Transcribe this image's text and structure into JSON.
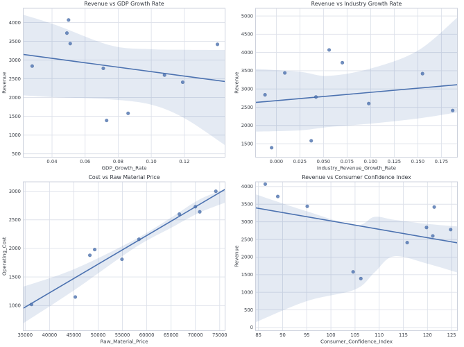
{
  "figure": {
    "background": "#ffffff",
    "accent": "#4c72b0",
    "band_color": "#4c72b0",
    "band_opacity": 0.15,
    "grid_color": "#dde1ea",
    "spine_color": "#ccd1dc",
    "text_color": "#3a3f47",
    "title_color": "#2f343c"
  },
  "chart_data": [
    {
      "type": "scatter",
      "key": "revenue-vs-gdp-growth-rate",
      "title": "Revenue vs GDP Growth Rate",
      "xlabel": "GDP_Growth_Rate",
      "ylabel": "Revenue",
      "xlim": [
        0.0226,
        0.1446
      ],
      "ylim": [
        410,
        4380
      ],
      "xticks": [
        0.04,
        0.06,
        0.08,
        0.1,
        0.12
      ],
      "x_decimals": 2,
      "yticks": [
        500,
        1000,
        1500,
        2000,
        2500,
        3000,
        3500,
        4000
      ],
      "grid": true,
      "regression": true,
      "points": [
        [
          0.028,
          2840
        ],
        [
          0.049,
          3720
        ],
        [
          0.05,
          4070
        ],
        [
          0.051,
          3440
        ],
        [
          0.071,
          2780
        ],
        [
          0.073,
          1390
        ],
        [
          0.086,
          1580
        ],
        [
          0.108,
          2600
        ],
        [
          0.119,
          2410
        ],
        [
          0.14,
          3420
        ]
      ],
      "ci_band": [
        [
          0.0226,
          2060,
          4210
        ],
        [
          0.042,
          2010,
          3940
        ],
        [
          0.0756,
          1950,
          3390
        ],
        [
          0.1,
          1810,
          3290
        ],
        [
          0.12,
          1450,
          3275
        ],
        [
          0.1446,
          730,
          3270
        ]
      ]
    },
    {
      "type": "scatter",
      "key": "revenue-vs-industry-growth-rate",
      "title": "Revenue vs Industry Growth Rate",
      "xlabel": "Industry_Revenue_Growth_Rate",
      "ylabel": "Revenue",
      "xlim": [
        -0.022,
        0.192
      ],
      "ylim": [
        1130,
        5210
      ],
      "xticks": [
        0.0,
        0.025,
        0.05,
        0.075,
        0.1,
        0.125,
        0.15,
        0.175
      ],
      "x_decimals": 3,
      "yticks": [
        1500,
        2000,
        2500,
        3000,
        3500,
        4000,
        4500,
        5000
      ],
      "grid": true,
      "regression": true,
      "points": [
        [
          -0.012,
          2840
        ],
        [
          -0.005,
          1390
        ],
        [
          0.009,
          3440
        ],
        [
          0.037,
          1580
        ],
        [
          0.042,
          2780
        ],
        [
          0.056,
          4070
        ],
        [
          0.07,
          3720
        ],
        [
          0.098,
          2600
        ],
        [
          0.155,
          3420
        ],
        [
          0.187,
          2410
        ]
      ],
      "ci_band": [
        [
          -0.022,
          1830,
          3550
        ],
        [
          0.025,
          1865,
          3470
        ],
        [
          0.055,
          1955,
          3360
        ],
        [
          0.1,
          2050,
          3560
        ],
        [
          0.15,
          2190,
          4050
        ],
        [
          0.192,
          2360,
          4960
        ]
      ]
    },
    {
      "type": "scatter",
      "key": "cost-vs-raw-material-price",
      "title": "Cost vs Raw Material Price",
      "xlabel": "Raw_Material_Price",
      "ylabel": "Operating_Cost",
      "xlim": [
        34600,
        76100
      ],
      "ylim": [
        560,
        3165
      ],
      "xticks": [
        35000,
        40000,
        45000,
        50000,
        55000,
        60000,
        65000,
        70000,
        75000
      ],
      "x_decimals": 0,
      "yticks": [
        1000,
        1500,
        2000,
        2500,
        3000
      ],
      "grid": true,
      "regression": true,
      "points": [
        [
          36300,
          1020
        ],
        [
          45300,
          1150
        ],
        [
          48300,
          1880
        ],
        [
          49300,
          1980
        ],
        [
          54900,
          1810
        ],
        [
          58400,
          2160
        ],
        [
          66700,
          2600
        ],
        [
          70000,
          2730
        ],
        [
          70900,
          2640
        ],
        [
          74200,
          3000
        ]
      ],
      "ci_band": [
        [
          34600,
          690,
          1330
        ],
        [
          45000,
          1265,
          1635
        ],
        [
          57430,
          2005,
          2150
        ],
        [
          65000,
          2360,
          2540
        ],
        [
          70700,
          2620,
          2850
        ],
        [
          76100,
          2800,
          3040
        ]
      ]
    },
    {
      "type": "scatter",
      "key": "revenue-vs-consumer-confidence-index",
      "title": "Revenue vs Consumer Confidence Index",
      "xlabel": "Consumer_Confidence_Index",
      "ylabel": "Revenue",
      "xlim": [
        84.4,
        126.2
      ],
      "ylim": [
        -90,
        4135
      ],
      "xticks": [
        85,
        90,
        95,
        100,
        105,
        110,
        115,
        120,
        125
      ],
      "x_decimals": 0,
      "yticks": [
        0,
        500,
        1000,
        1500,
        2000,
        2500,
        3000,
        3500,
        4000
      ],
      "grid": true,
      "regression": true,
      "points": [
        [
          86.4,
          4070
        ],
        [
          89.0,
          3720
        ],
        [
          95.1,
          3440
        ],
        [
          104.6,
          1580
        ],
        [
          106.2,
          1390
        ],
        [
          115.8,
          2410
        ],
        [
          119.8,
          2840
        ],
        [
          121.4,
          3420
        ],
        [
          121.1,
          2600
        ],
        [
          124.8,
          2780
        ]
      ],
      "ci_band": [
        [
          84.4,
          150,
          3780
        ],
        [
          95,
          750,
          3300
        ],
        [
          105,
          1080,
          2905
        ],
        [
          109,
          1560,
          3140
        ],
        [
          113,
          2020,
          3060
        ],
        [
          120,
          1810,
          2940
        ],
        [
          126.2,
          1560,
          2870
        ]
      ]
    }
  ]
}
